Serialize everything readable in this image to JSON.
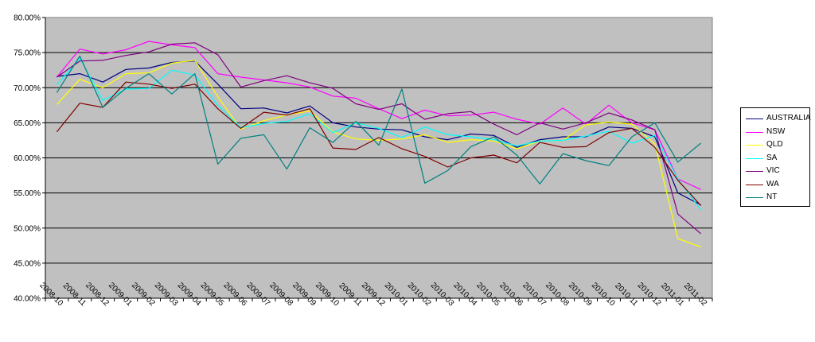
{
  "chart_data": {
    "type": "line",
    "title": "",
    "xlabel": "",
    "ylabel": "",
    "ylim": [
      40,
      80
    ],
    "ytick_step": 5,
    "ytick_format": "percent_2dp",
    "grid": true,
    "legend_placement": "right",
    "plot_background": "#c0c0c0",
    "categories": [
      "2008-10",
      "2008-11",
      "2008-12",
      "2009-01",
      "2009-02",
      "2009-03",
      "2009-04",
      "2009-05",
      "2009-06",
      "2009-07",
      "2009-08",
      "2009-09",
      "2009-10",
      "2009-11",
      "2009-12",
      "2010-01",
      "2010-02",
      "2010-03",
      "2010-04",
      "2010-05",
      "2010-06",
      "2010-07",
      "2010-08",
      "2010-09",
      "2010-10",
      "2010-11",
      "2010-12",
      "2011-01",
      "2011-02"
    ],
    "series": [
      {
        "name": "AUSTRALIA",
        "color": "#000080",
        "values": [
          71.6,
          72.0,
          70.8,
          72.6,
          72.8,
          73.6,
          73.8,
          70.5,
          67.0,
          67.1,
          66.4,
          67.4,
          65.0,
          64.4,
          64.1,
          64.0,
          63.0,
          62.6,
          63.4,
          63.2,
          61.5,
          62.6,
          63.0,
          63.0,
          64.4,
          64.2,
          63.0,
          55.0,
          53.3
        ]
      },
      {
        "name": "NSW",
        "color": "#ff00ff",
        "values": [
          71.5,
          75.5,
          74.8,
          75.4,
          76.6,
          76.1,
          75.7,
          72.0,
          71.5,
          71.1,
          70.7,
          70.1,
          68.8,
          68.5,
          67.0,
          65.6,
          66.8,
          66.0,
          66.1,
          66.5,
          65.5,
          64.8,
          67.1,
          64.8,
          67.5,
          65.0,
          64.0,
          57.0,
          55.5
        ]
      },
      {
        "name": "QLD",
        "color": "#ffff00",
        "values": [
          67.6,
          71.2,
          70.0,
          72.0,
          72.1,
          73.5,
          73.9,
          68.7,
          64.1,
          65.3,
          66.1,
          66.7,
          63.7,
          62.7,
          62.5,
          62.7,
          63.3,
          62.2,
          62.6,
          62.4,
          61.3,
          62.4,
          62.5,
          64.7,
          65.1,
          64.8,
          62.0,
          48.5,
          47.3
        ]
      },
      {
        "name": "SA",
        "color": "#00ffff",
        "values": [
          70.4,
          74.2,
          68.2,
          69.8,
          69.9,
          72.5,
          71.8,
          67.5,
          64.3,
          64.9,
          65.2,
          66.3,
          63.6,
          65.0,
          64.2,
          62.9,
          64.4,
          63.3,
          63.0,
          62.6,
          61.7,
          62.4,
          62.5,
          63.1,
          63.8,
          62.1,
          63.2,
          57.0,
          52.6
        ]
      },
      {
        "name": "VIC",
        "color": "#800080",
        "values": [
          71.5,
          73.8,
          73.9,
          74.6,
          75.1,
          76.2,
          76.4,
          74.7,
          70.1,
          71.0,
          71.7,
          70.7,
          69.9,
          67.7,
          66.9,
          67.7,
          65.5,
          66.3,
          66.6,
          64.8,
          63.3,
          65.0,
          64.1,
          65.0,
          66.4,
          65.4,
          64.0,
          52.0,
          49.2
        ]
      },
      {
        "name": "WA",
        "color": "#800000",
        "values": [
          63.7,
          67.8,
          67.2,
          70.8,
          70.5,
          69.9,
          70.5,
          67.0,
          64.2,
          66.5,
          66.1,
          67.0,
          61.4,
          61.2,
          62.9,
          61.3,
          60.2,
          58.7,
          60.0,
          60.4,
          59.3,
          62.2,
          61.5,
          61.6,
          63.6,
          64.2,
          61.5,
          56.8,
          53.2
        ]
      },
      {
        "name": "NT",
        "color": "#008080",
        "values": [
          69.3,
          74.5,
          67.2,
          69.9,
          72.0,
          69.1,
          72.0,
          59.1,
          62.8,
          63.3,
          58.4,
          64.3,
          62.2,
          65.2,
          61.8,
          69.8,
          56.4,
          58.2,
          61.6,
          63.0,
          60.4,
          56.3,
          60.6,
          59.6,
          58.9,
          63.0,
          65.0,
          59.4,
          62.1
        ]
      }
    ]
  }
}
